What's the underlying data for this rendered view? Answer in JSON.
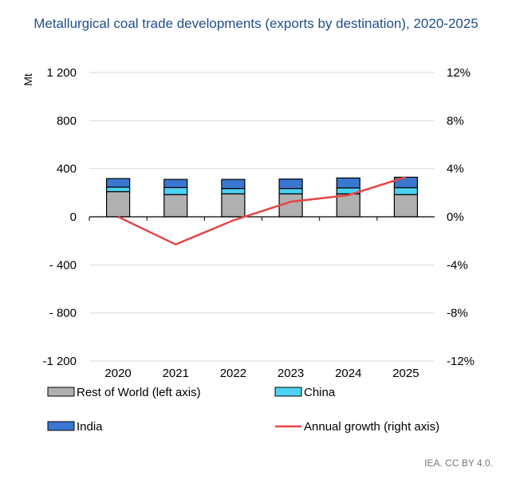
{
  "chart_data": {
    "type": "bar",
    "title": "Metallurgical coal trade developments (exports by destination), 2020-2025",
    "ylabel": "Mt",
    "ylim": [
      -1200,
      1200
    ],
    "y2lim": [
      -0.12,
      0.12
    ],
    "left_ticks": [
      "-1 200",
      "- 800",
      "- 400",
      "0",
      "400",
      "800",
      "1 200"
    ],
    "left_tick_values": [
      -1200,
      -800,
      -400,
      0,
      400,
      800,
      1200
    ],
    "right_ticks": [
      "-12%",
      "-8%",
      "-4%",
      "0%",
      "4%",
      "8%",
      "12%"
    ],
    "right_tick_values": [
      -0.12,
      -0.08,
      -0.04,
      0,
      0.04,
      0.08,
      0.12
    ],
    "categories": [
      "2020",
      "2021",
      "2022",
      "2023",
      "2024",
      "2025"
    ],
    "series": [
      {
        "name": "Rest of World (left axis)",
        "kind": "bar",
        "color": "#b0b0b0",
        "values": [
          209,
          185,
          191,
          191,
          191,
          185
        ]
      },
      {
        "name": "China",
        "kind": "bar",
        "color": "#4dd2f5",
        "values": [
          38,
          58,
          44,
          44,
          49,
          57
        ]
      },
      {
        "name": "India",
        "kind": "bar",
        "color": "#3a77d0",
        "values": [
          71,
          68,
          76,
          79,
          83,
          87
        ]
      },
      {
        "name": "Annual growth (right axis)",
        "kind": "line",
        "color": "#e84545",
        "values": [
          0,
          -0.023,
          -0.003,
          0.0125,
          0.018,
          0.033
        ]
      }
    ],
    "grid": true,
    "legend": "bottom"
  },
  "source": "IEA. CC BY 4.0."
}
